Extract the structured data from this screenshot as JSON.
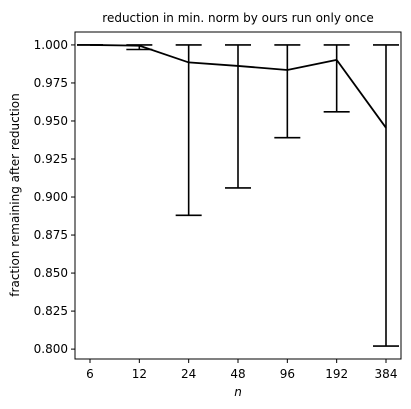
{
  "chart_data": {
    "type": "line",
    "title": "reduction in min. norm by ours run only once",
    "xlabel": "n",
    "ylabel": "fraction remaining after reduction",
    "categories": [
      "6",
      "12",
      "24",
      "48",
      "96",
      "192",
      "384"
    ],
    "series": [
      {
        "values": [
          1.0,
          0.9995,
          0.9885,
          0.9862,
          0.9835,
          0.9902,
          0.9455
        ],
        "error_low": [
          1.0,
          0.997,
          0.888,
          0.906,
          0.939,
          0.956,
          0.802
        ],
        "error_high": [
          1.0,
          1.0,
          1.0,
          1.0,
          1.0,
          1.0,
          1.0
        ]
      }
    ],
    "yticks": [
      "0.800",
      "0.825",
      "0.850",
      "0.875",
      "0.900",
      "0.925",
      "0.950",
      "0.975",
      "1.000"
    ],
    "ylim": [
      0.7935,
      1.0085
    ],
    "grid": false,
    "line_color": "#000000"
  }
}
